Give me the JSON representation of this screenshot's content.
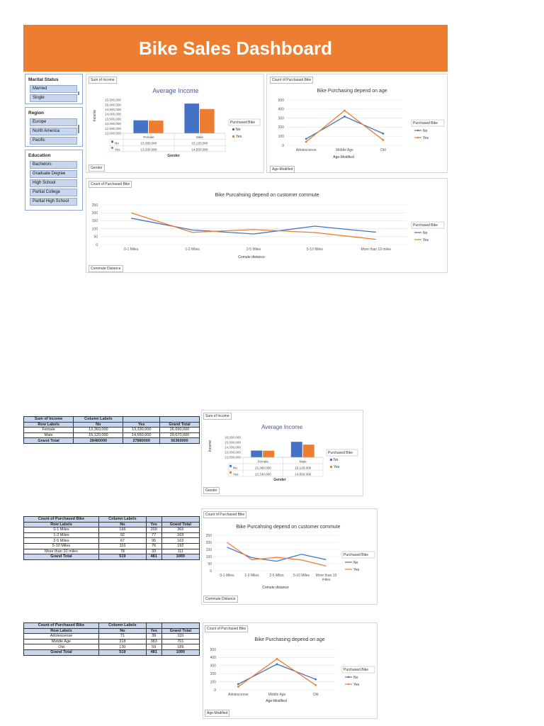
{
  "title": "Bike Sales Dashboard",
  "colors": {
    "banner": "#ED7D31",
    "no": "#4472C4",
    "yes": "#ED7D31",
    "slicer_item": "#c9d7ee"
  },
  "slicers": {
    "marital": {
      "title": "Marital Status",
      "items": [
        "Married",
        "Single"
      ]
    },
    "region": {
      "title": "Region",
      "items": [
        "Europe",
        "North America",
        "Pacific"
      ]
    },
    "education": {
      "title": "Education",
      "items": [
        "Bachelors",
        "Graduate Degree",
        "High School",
        "Partial College",
        "Partial High School"
      ]
    }
  },
  "fields": {
    "sum_income": "Sum of Income",
    "count_bike": "Count of Purchased Bike",
    "gender": "Gender",
    "age_modified": "Age-Modified",
    "commute_distance": "Commute Distance",
    "purchased_bike": "Purchased Bike"
  },
  "income_chart": {
    "title": "Average Income",
    "ylabel": "Income",
    "xlabel": "Gender",
    "ticks": [
      "15,500,000",
      "15,000,000",
      "14,500,000",
      "14,000,000",
      "13,500,000",
      "13,000,000",
      "12,500,000",
      "12,000,000"
    ],
    "ticks_short": [
      "16,000,000",
      "15,000,000",
      "14,000,000",
      "13,000,000",
      "12,000,000"
    ],
    "categories": [
      "Female",
      "Male"
    ],
    "no_label": "No",
    "yes_label": "Yes",
    "no_values": [
      "13,360,000",
      "15,120,000"
    ],
    "yes_values": [
      "13,330,000",
      "14,550,000"
    ]
  },
  "age_chart": {
    "title": "Bike Purchasing depend on age",
    "xlabel": "Age-Modified",
    "ticks": [
      "500",
      "400",
      "300",
      "200",
      "100",
      "0"
    ],
    "categories": [
      "Adolescense",
      "Middle Age",
      "Old"
    ]
  },
  "commute_chart": {
    "title": "Bike Purcahsing depend on customer commute",
    "xlabel": "Comute distance",
    "ticks": [
      "250",
      "200",
      "150",
      "100",
      "50",
      "0"
    ],
    "categories": [
      "0-1 Miles",
      "1-2 Miles",
      "2-5 Miles",
      "5-10 Miles",
      "More than 10 miles"
    ],
    "categories_small": [
      "0-1 Miles",
      "1-2 Miles",
      "2-5 Miles",
      "5-10 Miles",
      "More than 10"
    ],
    "small_extra": "miles"
  },
  "legend": {
    "title": "Purchased Bike",
    "no": "No",
    "yes": "Yes"
  },
  "chart_data": [
    {
      "type": "bar",
      "title": "Average Income",
      "xlabel": "Gender",
      "ylabel": "Income",
      "categories": [
        "Female",
        "Male"
      ],
      "ylim": [
        12000000,
        15500000
      ],
      "series": [
        {
          "name": "No",
          "values": [
            13360000,
            15120000
          ]
        },
        {
          "name": "Yes",
          "values": [
            13330000,
            14550000
          ]
        }
      ]
    },
    {
      "type": "line",
      "title": "Bike Purchasing depend on age",
      "xlabel": "Age-Modified",
      "categories": [
        "Adolescense",
        "Middle Age",
        "Old"
      ],
      "ylim": [
        0,
        500
      ],
      "series": [
        {
          "name": "No",
          "values": [
            71,
            318,
            130
          ]
        },
        {
          "name": "Yes",
          "values": [
            39,
            383,
            59
          ]
        }
      ]
    },
    {
      "type": "line",
      "title": "Bike Purcahsing depend on customer commute",
      "xlabel": "Comute distance",
      "categories": [
        "0-1 Miles",
        "1-2 Miles",
        "2-5 Miles",
        "5-10 Miles",
        "More than 10 miles"
      ],
      "ylim": [
        0,
        250
      ],
      "series": [
        {
          "name": "No",
          "values": [
            166,
            92,
            67,
            116,
            78
          ]
        },
        {
          "name": "Yes",
          "values": [
            200,
            77,
            95,
            76,
            33
          ]
        }
      ]
    }
  ],
  "pivots": {
    "income": {
      "header1": [
        "Sum of Income",
        "Column Labels",
        "",
        ""
      ],
      "header2": [
        "Row Labels",
        "No",
        "Yes",
        "Grand Total"
      ],
      "rows": [
        [
          "Female",
          "13,360,000",
          "13,330,000",
          "26,690,000"
        ],
        [
          "Male",
          "15,120,000",
          "14,550,000",
          "29,670,000"
        ]
      ],
      "total": [
        "Grand Total",
        "28480000",
        "27880000",
        "56360000"
      ]
    },
    "commute": {
      "header1": [
        "Count of Purchased Bike",
        "Column Labels",
        "",
        ""
      ],
      "header2": [
        "Row Labels",
        "No",
        "Yes",
        "Grand Total"
      ],
      "rows": [
        [
          "0-1 Miles",
          "166",
          "200",
          "366"
        ],
        [
          "1-2 Miles",
          "92",
          "77",
          "169"
        ],
        [
          "2-5 Miles",
          "67",
          "95",
          "162"
        ],
        [
          "5-10 Miles",
          "116",
          "76",
          "192"
        ],
        [
          "More than 10 miles",
          "78",
          "33",
          "111"
        ]
      ],
      "total": [
        "Grand Total",
        "519",
        "481",
        "1000"
      ]
    },
    "age": {
      "header1": [
        "Count of Purchased Bike",
        "Column Labels",
        "",
        ""
      ],
      "header2": [
        "Row Labels",
        "No",
        "Yes",
        "Grand Total"
      ],
      "rows": [
        [
          "Adolescense",
          "71",
          "39",
          "110"
        ],
        [
          "Middle Age",
          "318",
          "383",
          "701"
        ],
        [
          "Old",
          "130",
          "59",
          "189"
        ]
      ],
      "total": [
        "Grand Total",
        "519",
        "481",
        "1000"
      ]
    }
  }
}
